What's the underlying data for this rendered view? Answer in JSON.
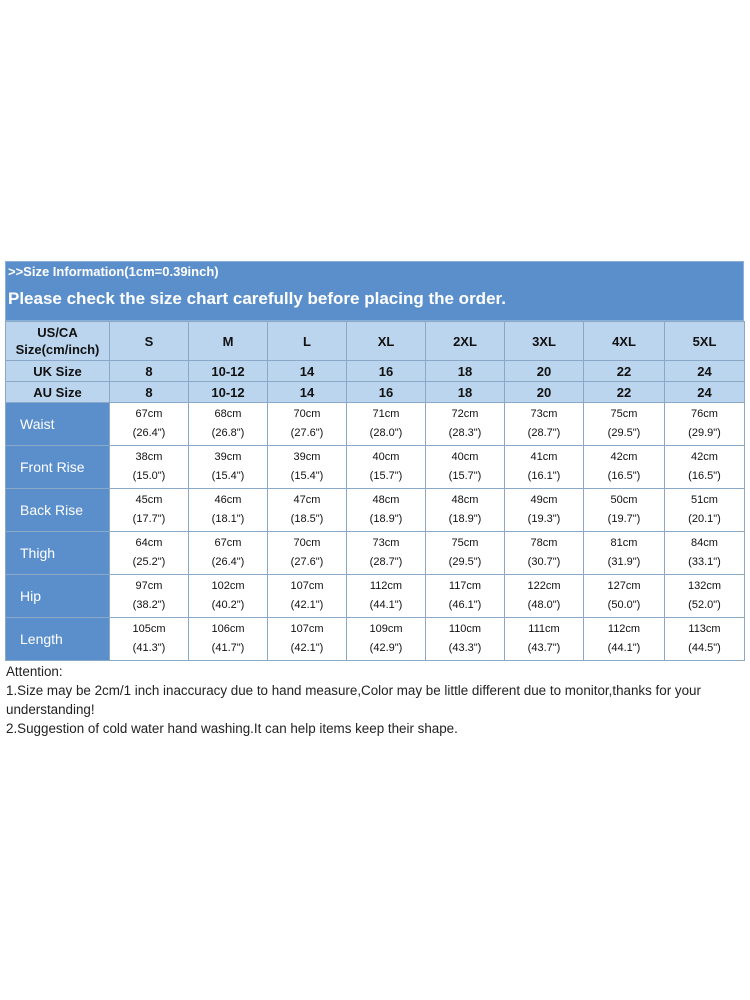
{
  "header": {
    "info": ">>Size Information(1cm=0.39inch)",
    "notice": "Please check the size chart carefully before placing the order."
  },
  "table": {
    "corner_line1": "US/CA",
    "corner_line2": "Size(cm/inch)",
    "sizes": [
      "S",
      "M",
      "L",
      "XL",
      "2XL",
      "3XL",
      "4XL",
      "5XL"
    ],
    "uk_label": "UK Size",
    "uk": [
      "8",
      "10-12",
      "14",
      "16",
      "18",
      "20",
      "22",
      "24"
    ],
    "au_label": "AU Size",
    "au": [
      "8",
      "10-12",
      "14",
      "16",
      "18",
      "20",
      "22",
      "24"
    ],
    "rows": [
      {
        "label": "Waist",
        "cm": [
          "67cm",
          "68cm",
          "70cm",
          "71cm",
          "72cm",
          "73cm",
          "75cm",
          "76cm"
        ],
        "inch": [
          "(26.4\")",
          "(26.8\")",
          "(27.6\")",
          "(28.0\")",
          "(28.3\")",
          "(28.7\")",
          "(29.5\")",
          "(29.9\")"
        ]
      },
      {
        "label": "Front Rise",
        "cm": [
          "38cm",
          "39cm",
          "39cm",
          "40cm",
          "40cm",
          "41cm",
          "42cm",
          "42cm"
        ],
        "inch": [
          "(15.0\")",
          "(15.4\")",
          "(15.4\")",
          "(15.7\")",
          "(15.7\")",
          "(16.1\")",
          "(16.5\")",
          "(16.5\")"
        ]
      },
      {
        "label": "Back Rise",
        "cm": [
          "45cm",
          "46cm",
          "47cm",
          "48cm",
          "48cm",
          "49cm",
          "50cm",
          "51cm"
        ],
        "inch": [
          "(17.7\")",
          "(18.1\")",
          "(18.5\")",
          "(18.9\")",
          "(18.9\")",
          "(19.3\")",
          "(19.7\")",
          "(20.1\")"
        ]
      },
      {
        "label": "Thigh",
        "cm": [
          "64cm",
          "67cm",
          "70cm",
          "73cm",
          "75cm",
          "78cm",
          "81cm",
          "84cm"
        ],
        "inch": [
          "(25.2\")",
          "(26.4\")",
          "(27.6\")",
          "(28.7\")",
          "(29.5\")",
          "(30.7\")",
          "(31.9\")",
          "(33.1\")"
        ]
      },
      {
        "label": "Hip",
        "cm": [
          "97cm",
          "102cm",
          "107cm",
          "112cm",
          "117cm",
          "122cm",
          "127cm",
          "132cm"
        ],
        "inch": [
          "(38.2\")",
          "(40.2\")",
          "(42.1\")",
          "(44.1\")",
          "(46.1\")",
          "(48.0\")",
          "(50.0\")",
          "(52.0\")"
        ]
      },
      {
        "label": "Length",
        "cm": [
          "105cm",
          "106cm",
          "107cm",
          "109cm",
          "110cm",
          "111cm",
          "112cm",
          "113cm"
        ],
        "inch": [
          "(41.3\")",
          "(41.7\")",
          "(42.1\")",
          "(42.9\")",
          "(43.3\")",
          "(43.7\")",
          "(44.1\")",
          "(44.5\")"
        ]
      }
    ]
  },
  "attention": {
    "title": "Attention:",
    "line1": "1.Size may be 2cm/1 inch inaccuracy due to hand measure,Color may be little different due to monitor,thanks for your understanding!",
    "line2": "2.Suggestion of cold water hand washing.It can help items keep their shape."
  },
  "colors": {
    "header_blue": "#5b8fcc",
    "light_blue": "#bcd5ee",
    "border": "#8aa9c9"
  }
}
